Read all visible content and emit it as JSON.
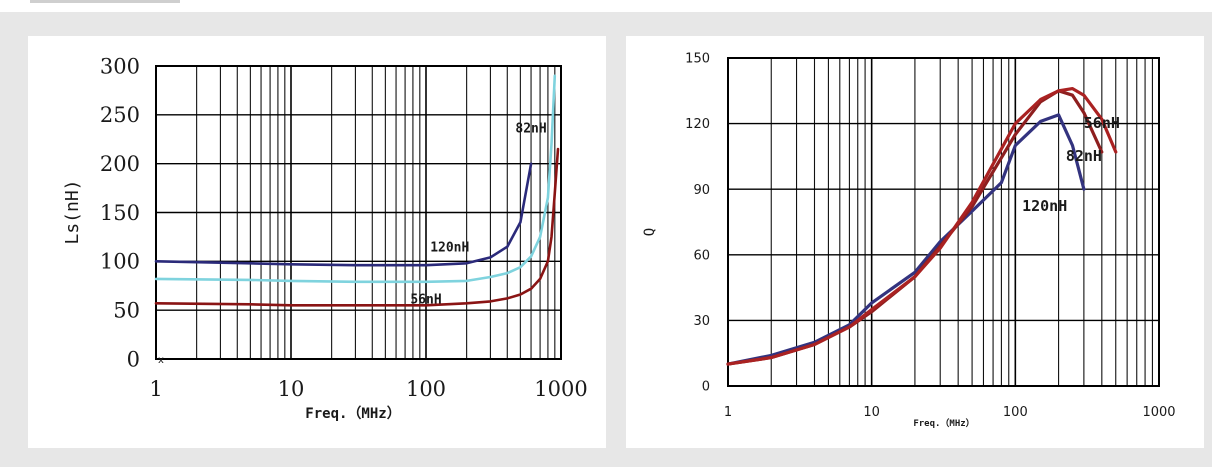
{
  "chart_data": [
    {
      "type": "line",
      "xlabel": "Freq.（MHz）",
      "ylabel": "Ls(nH)",
      "xscale": "log",
      "xlim": [
        1,
        1000
      ],
      "ylim": [
        0,
        300
      ],
      "xticks": [
        1,
        10,
        100,
        1000
      ],
      "yticks": [
        0,
        50,
        100,
        150,
        200,
        250,
        300
      ],
      "xtick_labels": [
        "1",
        "10",
        "100",
        "1000"
      ],
      "ytick_labels": [
        "0",
        "50",
        "100",
        "150",
        "200",
        "250",
        "300"
      ],
      "grid": true,
      "colors": {
        "120nH": "#2b2a7a",
        "82nH": "#7fd3de",
        "56nH": "#8a1414"
      },
      "series": [
        {
          "name": "120nH",
          "label_text": "120nH",
          "label_at": [
            150,
            110
          ],
          "x": [
            1,
            5,
            10,
            30,
            100,
            200,
            300,
            400,
            500,
            600
          ],
          "y": [
            100,
            98,
            97,
            96,
            96,
            98,
            104,
            115,
            140,
            200
          ]
        },
        {
          "name": "82nH",
          "label_text": "82nH",
          "label_at": [
            600,
            232
          ],
          "x": [
            1,
            5,
            10,
            30,
            100,
            200,
            300,
            400,
            500,
            600,
            700,
            800,
            850,
            900
          ],
          "y": [
            82,
            81,
            80,
            79,
            79,
            80,
            84,
            88,
            94,
            105,
            125,
            165,
            220,
            290
          ]
        },
        {
          "name": "56nH",
          "label_text": "56nH",
          "label_at": [
            100,
            57
          ],
          "x": [
            1,
            5,
            10,
            30,
            100,
            200,
            300,
            400,
            500,
            600,
            700,
            800,
            850,
            900,
            950
          ],
          "y": [
            57,
            56,
            55,
            55,
            55,
            57,
            59,
            62,
            66,
            72,
            82,
            100,
            125,
            170,
            215
          ]
        }
      ],
      "annotations": [
        "x"
      ]
    },
    {
      "type": "line",
      "xlabel": "Freq.（MHz）",
      "ylabel": "Q",
      "xscale": "log",
      "xlim": [
        1,
        1000
      ],
      "ylim": [
        0,
        150
      ],
      "xticks": [
        1,
        10,
        100,
        1000
      ],
      "yticks": [
        0,
        30,
        60,
        90,
        120,
        150
      ],
      "xtick_labels": [
        "1",
        "10",
        "100",
        "1000"
      ],
      "ytick_labels": [
        "0",
        "30",
        "60",
        "90",
        "120",
        "150"
      ],
      "grid": true,
      "colors": {
        "120nH": "#33337f",
        "82nH": "#8e1f1f",
        "56nH": "#aa2222"
      },
      "series": [
        {
          "name": "120nH",
          "label_text": "120nH",
          "label_at": [
            160,
            80
          ],
          "x": [
            1,
            2,
            4,
            7,
            10,
            20,
            30,
            50,
            80,
            100,
            150,
            200,
            250,
            300
          ],
          "y": [
            10,
            14,
            20,
            28,
            38,
            52,
            66,
            80,
            93,
            110,
            121,
            124,
            110,
            90
          ]
        },
        {
          "name": "82nH",
          "label_text": "82nH",
          "label_at": [
            300,
            103
          ],
          "x": [
            1,
            2,
            4,
            7,
            10,
            20,
            30,
            50,
            100,
            150,
            200,
            250,
            300,
            400
          ],
          "y": [
            10,
            13,
            19,
            27,
            34,
            50,
            64,
            82,
            115,
            130,
            135,
            133,
            125,
            107
          ]
        },
        {
          "name": "56nH",
          "label_text": "56nH",
          "label_at": [
            400,
            118
          ],
          "x": [
            1,
            2,
            4,
            7,
            10,
            20,
            30,
            50,
            100,
            150,
            200,
            250,
            300,
            400,
            500
          ],
          "y": [
            10,
            13,
            19,
            27,
            35,
            50,
            63,
            84,
            120,
            131,
            135,
            136,
            133,
            122,
            107
          ]
        }
      ]
    }
  ]
}
